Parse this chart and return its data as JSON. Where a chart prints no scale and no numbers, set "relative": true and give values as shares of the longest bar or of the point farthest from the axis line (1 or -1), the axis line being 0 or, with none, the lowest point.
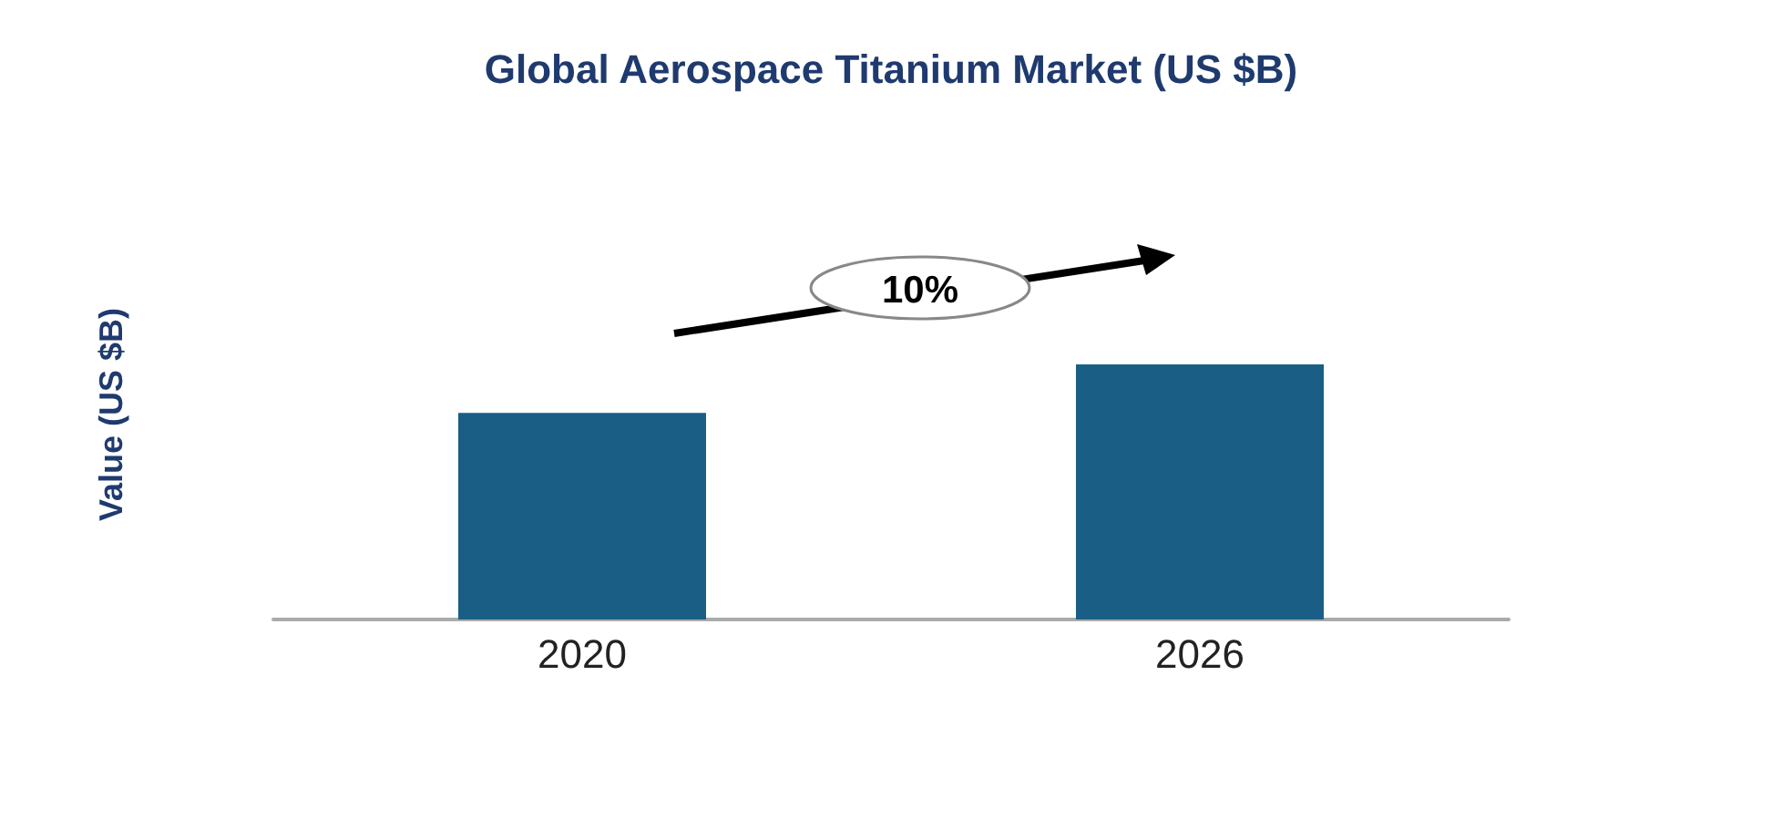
{
  "chart_data": {
    "type": "bar",
    "title": "Global Aerospace Titanium Market (US $B)",
    "ylabel": "Value (US $B)",
    "categories": [
      "2020",
      "2026"
    ],
    "values": [
      0.81,
      1
    ],
    "color": "#1b5e85",
    "relative": true,
    "annotations": [
      "10%"
    ]
  }
}
